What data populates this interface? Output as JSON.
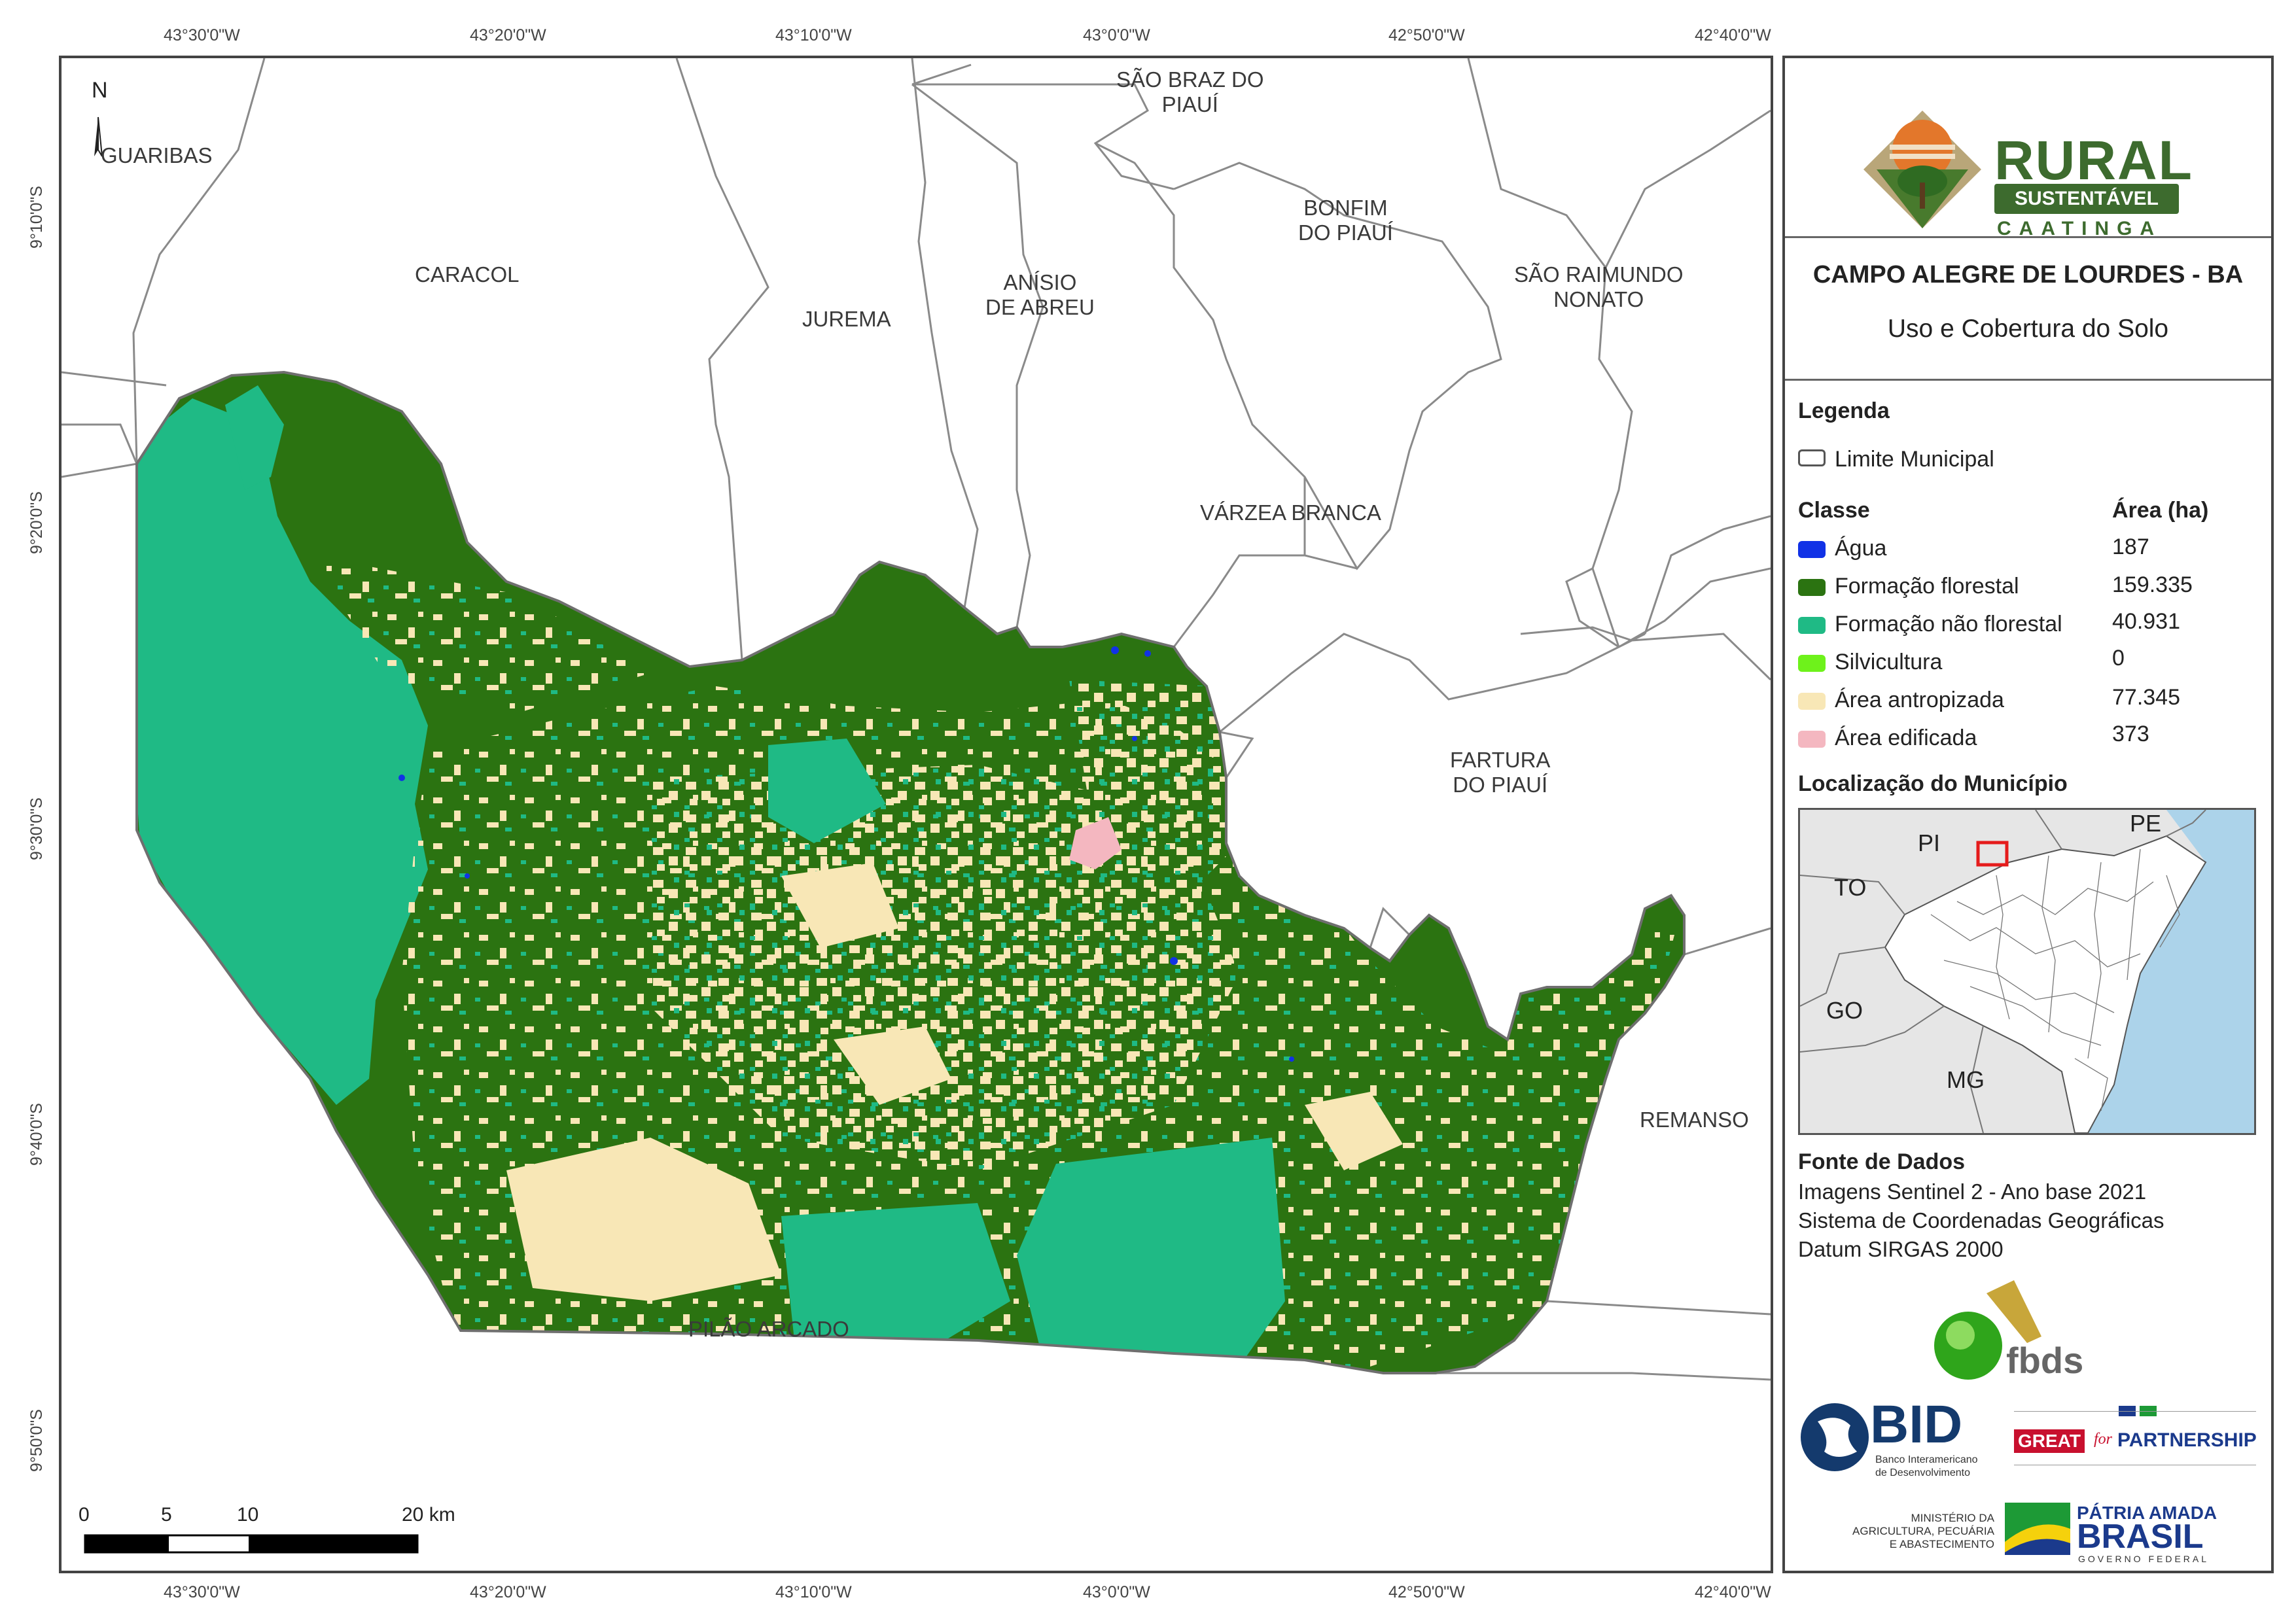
{
  "coordinates": {
    "top_longitudes": [
      "43°30'0\"W",
      "43°20'0\"W",
      "43°10'0\"W",
      "43°0'0\"W",
      "42°50'0\"W",
      "42°40'0\"W"
    ],
    "bottom_longitudes": [
      "43°30'0\"W",
      "43°20'0\"W",
      "43°10'0\"W",
      "43°0'0\"W",
      "42°50'0\"W",
      "42°40'0\"W"
    ],
    "left_latitudes": [
      "9°10'0\"S",
      "9°20'0\"S",
      "9°30'0\"S",
      "9°40'0\"S",
      "9°50'0\"S"
    ]
  },
  "map": {
    "north_label": "N",
    "places": {
      "guaribas": "GUARIBAS",
      "caracol": "CARACOL",
      "jurema": "JUREMA",
      "anisio": "ANÍSIO\nDE ABREU",
      "sao_braz": "SÃO BRAZ DO\nPIAUÍ",
      "bonfim": "BONFIM\nDO PIAUÍ",
      "sao_raimundo": "SÃO RAIMUNDO\nNONATO",
      "varzea": "VÁRZEA BRANCA",
      "fartura": "FARTURA\nDO PIAUÍ",
      "remanso": "REMANSO",
      "pilao": "PILÃO ARCADO"
    },
    "scale_labels": [
      "0",
      "5",
      "10",
      "20 km"
    ],
    "colors": {
      "forest": "#2b7311",
      "nonforest": "#1fba85",
      "anthropic": "#f8e7b6",
      "built": "#f4b7c0",
      "water": "#1132e6",
      "boundary": "#8a8a8a",
      "neighbor_fill": "#ececec"
    }
  },
  "panel": {
    "logo": {
      "rural": "RURAL",
      "sustentavel": "SUSTENTÁVEL",
      "caatinga": "CAATINGA"
    },
    "title": "CAMPO ALEGRE DE LOURDES - BA",
    "subtitle": "Uso e Cobertura do Solo",
    "legend_heading": "Legenda",
    "limit_label": "Limite Municipal",
    "class_heading": "Classe",
    "area_heading": "Área (ha)",
    "classes": [
      {
        "label": "Água",
        "area": "187",
        "color": "#1132e6"
      },
      {
        "label": "Formação florestal",
        "area": "159.335",
        "color": "#2b7311"
      },
      {
        "label": "Formação não florestal",
        "area": "40.931",
        "color": "#1fba85"
      },
      {
        "label": "Silvicultura",
        "area": "0",
        "color": "#6ef21b"
      },
      {
        "label": "Área antropizada",
        "area": "77.345",
        "color": "#f8e7b6"
      },
      {
        "label": "Área edificada",
        "area": "373",
        "color": "#f4b7c0"
      }
    ],
    "location_heading": "Localização do Município",
    "inset_labels": {
      "pi": "PI",
      "pe": "PE",
      "to": "TO",
      "go": "GO",
      "mg": "MG"
    },
    "source_heading": "Fonte de Dados",
    "source_lines": [
      "Imagens Sentinel 2 - Ano base 2021",
      "Sistema de Coordenadas Geográficas",
      "Datum SIRGAS 2000"
    ],
    "logos": {
      "fbds": "fbds",
      "bid": "BID",
      "bid_sub1": "Banco Interamericano",
      "bid_sub2": "de Desenvolvimento",
      "great": "GREAT",
      "for": "for",
      "partnership": "PARTNERSHIP",
      "ministerio1": "MINISTÉRIO DA",
      "ministerio2": "AGRICULTURA, PECUÁRIA",
      "ministerio3": "E ABASTECIMENTO",
      "patria": "PÁTRIA AMADA",
      "brasil": "BRASIL",
      "governo": "GOVERNO FEDERAL"
    }
  }
}
